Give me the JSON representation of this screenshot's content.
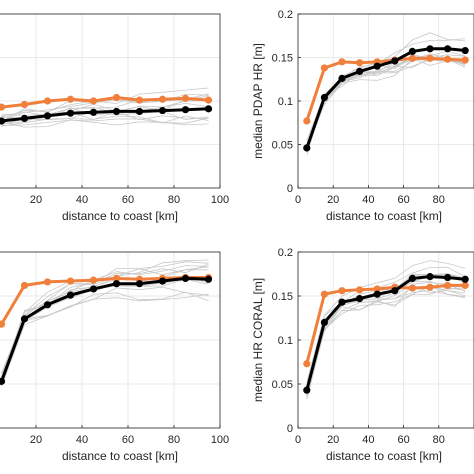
{
  "chart_data": [
    {
      "type": "line",
      "xlabel": "distance to coast [km]",
      "ylabel": "",
      "xlim": [
        0,
        100
      ],
      "xticks": [
        0,
        20,
        40,
        60,
        80,
        100
      ],
      "xtick_labels": [
        "",
        "20",
        "40",
        "60",
        "80",
        "100"
      ],
      "ylim": [
        0,
        0.2
      ],
      "yticks": [
        0,
        0.05,
        0.1,
        0.15,
        0.2
      ],
      "ytick_labels": [],
      "grid": true,
      "x": [
        5,
        15,
        25,
        35,
        45,
        55,
        65,
        75,
        85,
        95
      ],
      "series": [
        {
          "color": "#f07f3c",
          "values": [
            0.093,
            0.096,
            0.1,
            0.102,
            0.1,
            0.104,
            0.101,
            0.102,
            0.103,
            0.101
          ]
        },
        {
          "color": "#000000",
          "values": [
            0.077,
            0.08,
            0.083,
            0.086,
            0.087,
            0.088,
            0.088,
            0.089,
            0.09,
            0.091
          ]
        }
      ],
      "background_lines": "light gray"
    },
    {
      "type": "line",
      "xlabel": "distance to coast [km]",
      "ylabel": "median PDAP HR [m]",
      "xlim": [
        0,
        100
      ],
      "xticks": [
        0,
        20,
        40,
        60,
        80,
        100
      ],
      "xtick_labels": [
        "0",
        "20",
        "40",
        "60",
        "80",
        ""
      ],
      "ylim": [
        0,
        0.2
      ],
      "yticks": [
        0,
        0.05,
        0.1,
        0.15,
        0.2
      ],
      "ytick_labels": [
        "0",
        "0.05",
        "0.1",
        "0.15",
        "0.2"
      ],
      "grid": true,
      "x": [
        5,
        15,
        25,
        35,
        45,
        55,
        65,
        75,
        85,
        95
      ],
      "series": [
        {
          "color": "#f07f3c",
          "values": [
            0.077,
            0.138,
            0.145,
            0.144,
            0.145,
            0.147,
            0.149,
            0.149,
            0.148,
            0.147
          ]
        },
        {
          "color": "#000000",
          "values": [
            0.046,
            0.104,
            0.126,
            0.134,
            0.14,
            0.146,
            0.157,
            0.16,
            0.16,
            0.158
          ]
        }
      ],
      "background_lines": "light gray"
    },
    {
      "type": "line",
      "xlabel": "distance to coast [km]",
      "ylabel": "",
      "xlim": [
        0,
        100
      ],
      "xticks": [
        0,
        20,
        40,
        60,
        80,
        100
      ],
      "xtick_labels": [
        "0",
        "20",
        "40",
        "60",
        "80",
        "100"
      ],
      "ylim": [
        0,
        0.2
      ],
      "yticks": [
        0,
        0.05,
        0.1,
        0.15,
        0.2
      ],
      "ytick_labels": [],
      "grid": true,
      "x": [
        5,
        15,
        25,
        35,
        45,
        55,
        65,
        75,
        85,
        95
      ],
      "series": [
        {
          "color": "#f07f3c",
          "values": [
            0.118,
            0.162,
            0.166,
            0.167,
            0.168,
            0.17,
            0.169,
            0.17,
            0.171,
            0.171
          ]
        },
        {
          "color": "#000000",
          "values": [
            0.053,
            0.124,
            0.14,
            0.151,
            0.158,
            0.164,
            0.164,
            0.167,
            0.17,
            0.169
          ]
        }
      ],
      "background_lines": "light gray"
    },
    {
      "type": "line",
      "xlabel": "distance to coast [km]",
      "ylabel": "median HR CORAL [m]",
      "xlim": [
        0,
        100
      ],
      "xticks": [
        0,
        20,
        40,
        60,
        80,
        100
      ],
      "xtick_labels": [
        "0",
        "20",
        "40",
        "60",
        "80",
        ""
      ],
      "ylim": [
        0,
        0.2
      ],
      "yticks": [
        0,
        0.05,
        0.1,
        0.15,
        0.2
      ],
      "ytick_labels": [
        "0",
        "0.05",
        "0.1",
        "0.15",
        "0.2"
      ],
      "grid": true,
      "x": [
        5,
        15,
        25,
        35,
        45,
        55,
        65,
        75,
        85,
        95
      ],
      "series": [
        {
          "color": "#f07f3c",
          "values": [
            0.073,
            0.152,
            0.156,
            0.157,
            0.158,
            0.16,
            0.159,
            0.16,
            0.162,
            0.162
          ]
        },
        {
          "color": "#000000",
          "values": [
            0.043,
            0.12,
            0.143,
            0.147,
            0.152,
            0.156,
            0.17,
            0.172,
            0.171,
            0.169
          ]
        }
      ],
      "background_lines": "light gray"
    }
  ]
}
